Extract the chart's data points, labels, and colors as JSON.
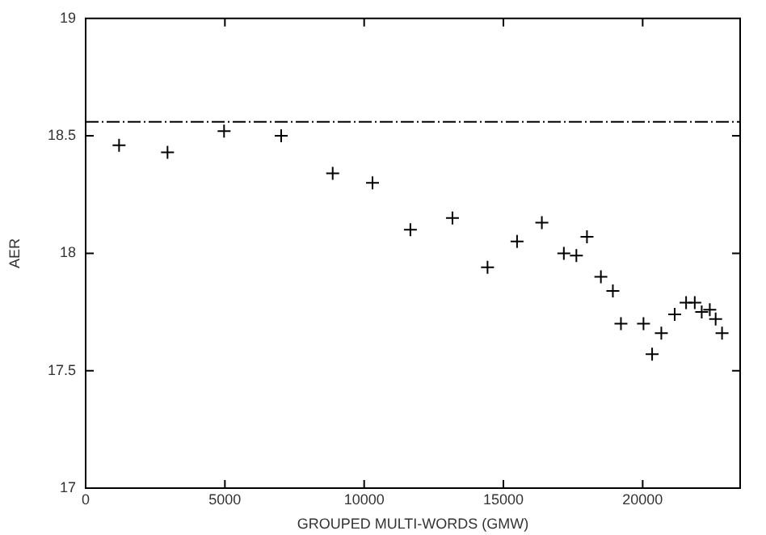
{
  "chart_data": {
    "type": "scatter",
    "xlabel": "GROUPED MULTI-WORDS (GMW)",
    "ylabel": "AER",
    "x": [
      1200,
      2940,
      4970,
      7020,
      8870,
      10300,
      11660,
      13170,
      14430,
      15490,
      16380,
      17170,
      17620,
      18000,
      18500,
      18930,
      19220,
      20030,
      20340,
      20670,
      21150,
      21560,
      21870,
      22120,
      22410,
      22620,
      22850
    ],
    "series": [
      {
        "color": "#000000",
        "values": [
          18.46,
          18.43,
          18.52,
          18.5,
          18.34,
          18.3,
          18.1,
          18.15,
          17.94,
          18.05,
          18.13,
          18.0,
          17.99,
          18.07,
          17.9,
          17.84,
          17.7,
          17.7,
          17.57,
          17.66,
          17.74,
          17.79,
          17.79,
          17.75,
          17.76,
          17.72,
          17.66
        ]
      }
    ],
    "xlim": [
      0,
      23500
    ],
    "xticks": [
      0,
      5000,
      10000,
      15000,
      20000
    ],
    "ylim": [
      17,
      19
    ],
    "yticks": [
      17,
      17.5,
      18,
      18.5,
      19
    ],
    "ref_lines": [
      {
        "axis": "y",
        "value": 18.56,
        "color": "#000000",
        "line_style": "dashed"
      }
    ],
    "marker": "cross",
    "grid": false,
    "legend": false
  }
}
